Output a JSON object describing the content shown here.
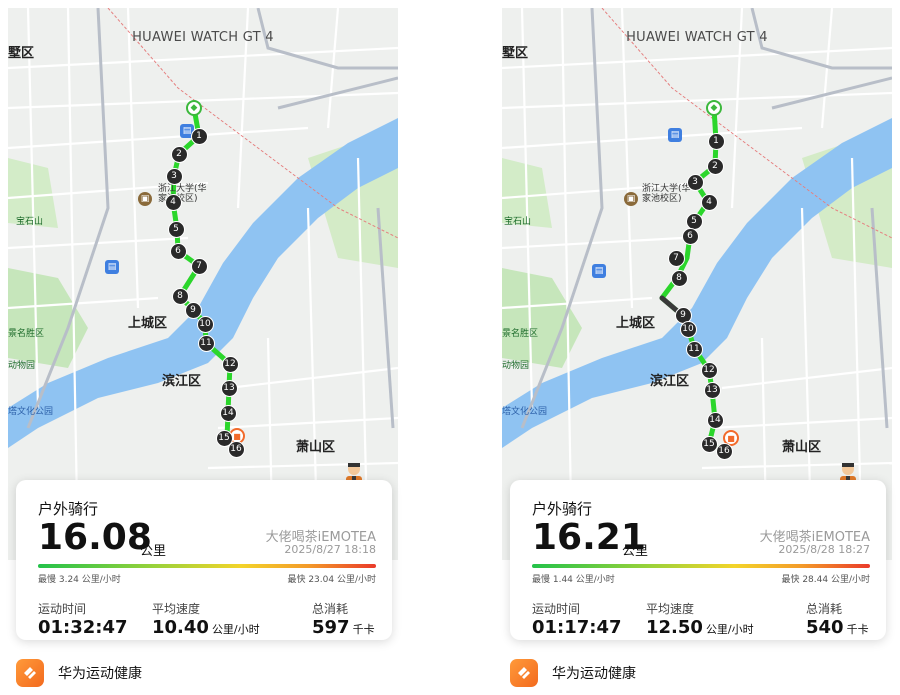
{
  "panels": [
    {
      "watch": "HUAWEI WATCH GT 4",
      "map_labels": {
        "district_top": "墅区",
        "university": "浙江大学(华\n家池校区)",
        "shangcheng": "上城区",
        "binjiang": "滨江区",
        "xiaoshan": "萧山区",
        "baoshi": "宝石山",
        "scenic": "景名胜区",
        "zoo": "动物园",
        "culture_park": "塔文化公园"
      },
      "markers": [
        "1",
        "2",
        "3",
        "4",
        "5",
        "6",
        "7",
        "8",
        "9",
        "10",
        "11",
        "12",
        "13",
        "14",
        "15",
        "16"
      ],
      "activity": "户外骑行",
      "distance": "16.08",
      "distance_unit": "公里",
      "user": "大佬喝茶iEMOTEA",
      "date": "2025/8/27 18:18",
      "slowest": "最慢 3.24 公里/小时",
      "fastest": "最快 23.04 公里/小时",
      "duration_label": "运动时间",
      "duration": "01:32:47",
      "avg_label": "平均速度",
      "avg": "10.40",
      "avg_unit": "公里/小时",
      "cal_label": "总消耗",
      "cal": "597",
      "cal_unit": "千卡",
      "app": "华为运动健康"
    },
    {
      "watch": "HUAWEI WATCH GT 4",
      "map_labels": {
        "district_top": "墅区",
        "university": "浙江大学(华\n家池校区)",
        "shangcheng": "上城区",
        "binjiang": "滨江区",
        "xiaoshan": "萧山区",
        "baoshi": "宝石山",
        "scenic": "景名胜区",
        "zoo": "动物园",
        "culture_park": "塔文化公园"
      },
      "markers": [
        "1",
        "2",
        "3",
        "4",
        "5",
        "6",
        "7",
        "8",
        "9",
        "10",
        "11",
        "12",
        "13",
        "14",
        "15",
        "16"
      ],
      "activity": "户外骑行",
      "distance": "16.21",
      "distance_unit": "公里",
      "user": "大佬喝茶iEMOTEA",
      "date": "2025/8/28 18:27",
      "slowest": "最慢 1.44 公里/小时",
      "fastest": "最快 28.44 公里/小时",
      "duration_label": "运动时间",
      "duration": "01:17:47",
      "avg_label": "平均速度",
      "avg": "12.50",
      "avg_unit": "公里/小时",
      "cal_label": "总消耗",
      "cal": "540",
      "cal_unit": "千卡",
      "app": "华为运动健康"
    }
  ],
  "colors": {
    "route_green": "#2bd62b",
    "route_dark": "#3a3a3a",
    "river": "#8fc3f2",
    "park": "#bfe3b4",
    "app_orange": "#f36a1e"
  }
}
